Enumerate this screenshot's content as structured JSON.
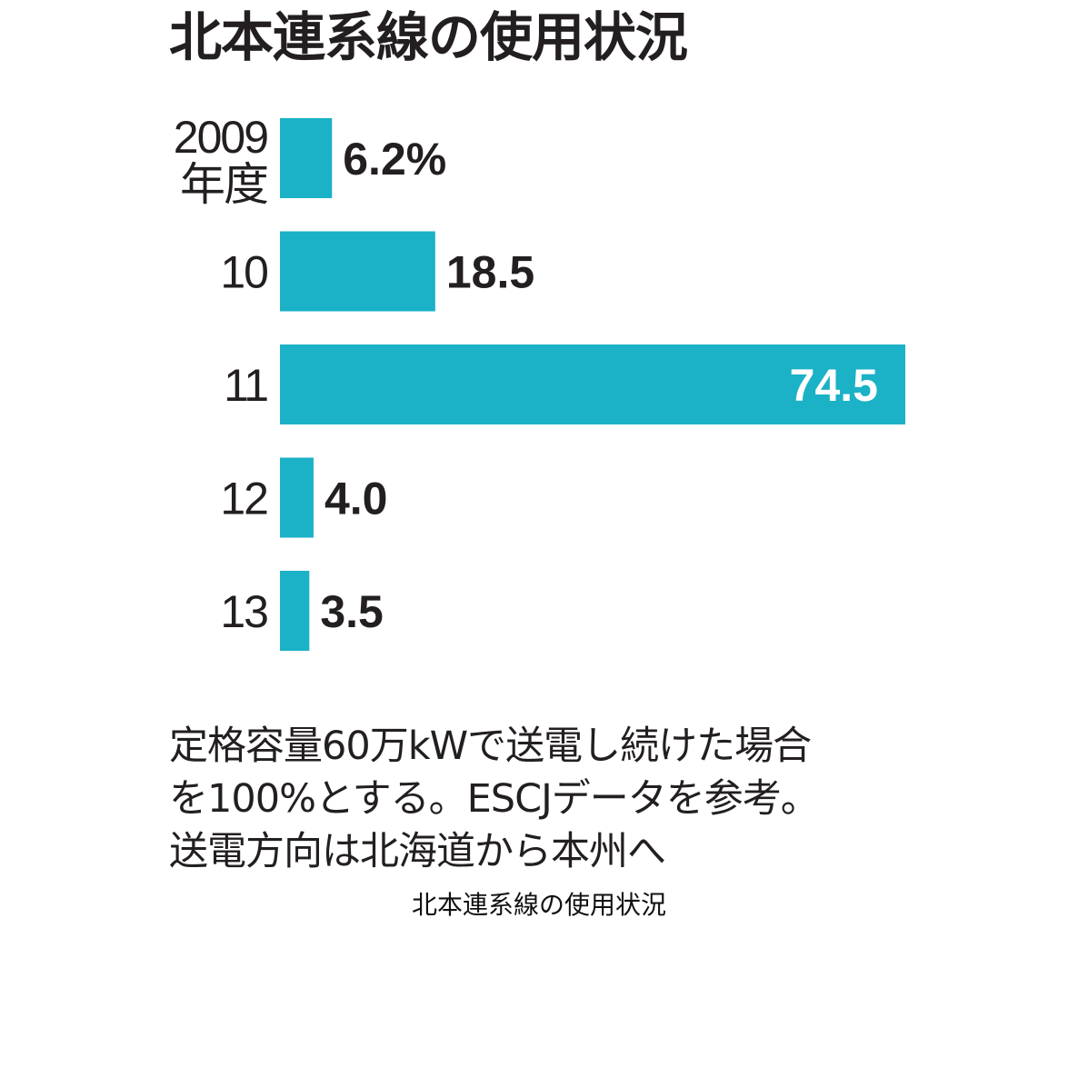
{
  "title": "北本連系線の使用状況",
  "chart_data": {
    "type": "bar",
    "orientation": "horizontal",
    "categories": [
      {
        "line1": "2009",
        "line2": "年度"
      },
      {
        "line1": "10"
      },
      {
        "line1": "11"
      },
      {
        "line1": "12"
      },
      {
        "line1": "13"
      }
    ],
    "values": [
      6.2,
      18.5,
      74.5,
      4.0,
      3.5
    ],
    "value_labels": [
      "6.2%",
      "18.5",
      "74.5",
      "4.0",
      "3.5"
    ],
    "unit": "%",
    "xlim": [
      0,
      74.5
    ],
    "bar_color": "#1bb1c7",
    "grid": false,
    "legend": "none"
  },
  "note": {
    "line1": "定格容量60万kWで送電し続けた場合",
    "line2": "を100%とする。ESCJデータを参考。",
    "line3": "送電方向は北海道から本州へ"
  },
  "caption": "北本連系線の使用状況"
}
